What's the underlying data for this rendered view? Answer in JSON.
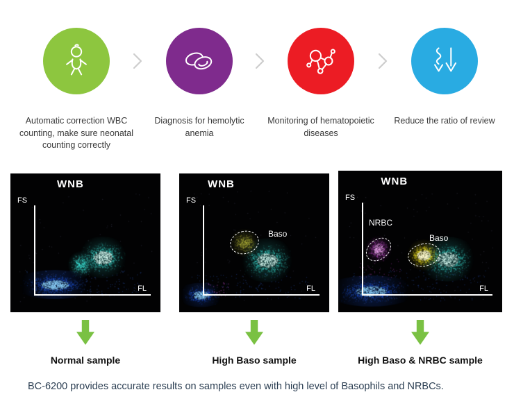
{
  "features": [
    {
      "icon": "baby-icon",
      "color": "#8dc63f",
      "label": "Automatic correction WBC counting, make sure neonatal counting correctly"
    },
    {
      "icon": "red-blood-cells-icon",
      "color": "#7f2b8d",
      "label": "Diagnosis for hemolytic anemia"
    },
    {
      "icon": "molecule-icon",
      "color": "#ec1c24",
      "label": "Monitoring of hematopoietic diseases"
    },
    {
      "icon": "down-arrows-icon",
      "color": "#29abe2",
      "label": "Reduce the ratio of review"
    }
  ],
  "separator_color": "#cdcdcd",
  "arrow_color": "#7ac143",
  "scatter_colors": {
    "cyan": "#3ee6da",
    "blue": "#2057dd",
    "olive": "#b9bb3c",
    "yellow": "#f2e424",
    "magenta": "#c44cce"
  },
  "panels": [
    {
      "title": "WNB",
      "y_axis_label": "FS",
      "x_axis_label": "FL",
      "annotations": [],
      "sample_label": "Normal sample"
    },
    {
      "title": "WNB",
      "y_axis_label": "FS",
      "x_axis_label": "FL",
      "annotations": [
        "Baso"
      ],
      "sample_label": "High Baso sample"
    },
    {
      "title": "WNB",
      "y_axis_label": "FS",
      "x_axis_label": "FL",
      "annotations": [
        "NRBC",
        "Baso"
      ],
      "sample_label": "High Baso & NRBC sample"
    }
  ],
  "caption": "BC-6200 provides accurate results on samples even with high level of Basophils and NRBCs."
}
